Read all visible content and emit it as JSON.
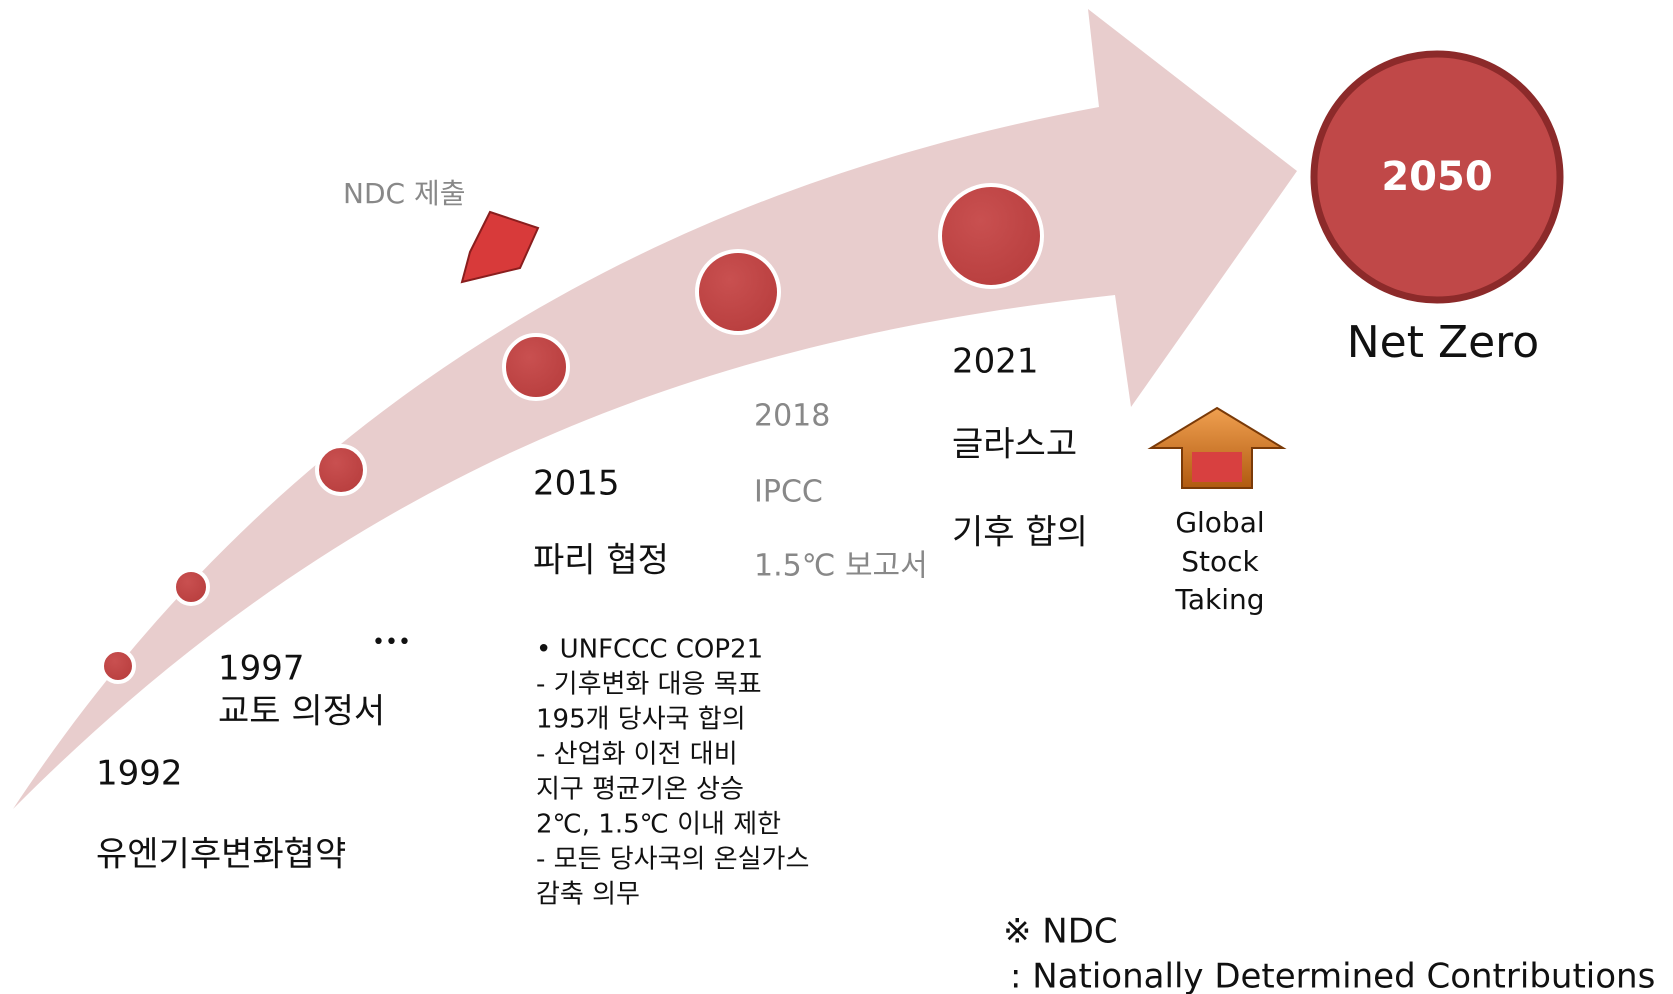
{
  "milestones": [
    {
      "year": "1992",
      "label": "유엔기후변화협약"
    },
    {
      "year": "1997",
      "label": "교토 의정서"
    },
    {
      "ellipsis": "•••"
    },
    {
      "year": "2015",
      "label": "파리 협정",
      "details": [
        "•   UNFCCC COP21",
        "- 기후변화 대응 목표",
        "  195개 당사국 합의",
        "-   산업화 이전 대비",
        "    지구 평균기온 상승",
        "    2℃, 1.5℃ 이내 제한",
        "-   모든 당사국의 온실가스",
        "    감축 의무"
      ]
    },
    {
      "year": "2018",
      "lines": [
        "IPCC",
        "1.5℃ 보고서"
      ]
    },
    {
      "year": "2021",
      "lines": [
        "글라스고",
        "기후 합의"
      ]
    }
  ],
  "ndc_label": "NDC 제출",
  "gst": [
    "Global",
    "Stock",
    "Taking"
  ],
  "goal": {
    "year": "2050",
    "label": "Net Zero"
  },
  "note": {
    "title": "※ NDC",
    "text": ": Nationally Determined Contributions"
  }
}
